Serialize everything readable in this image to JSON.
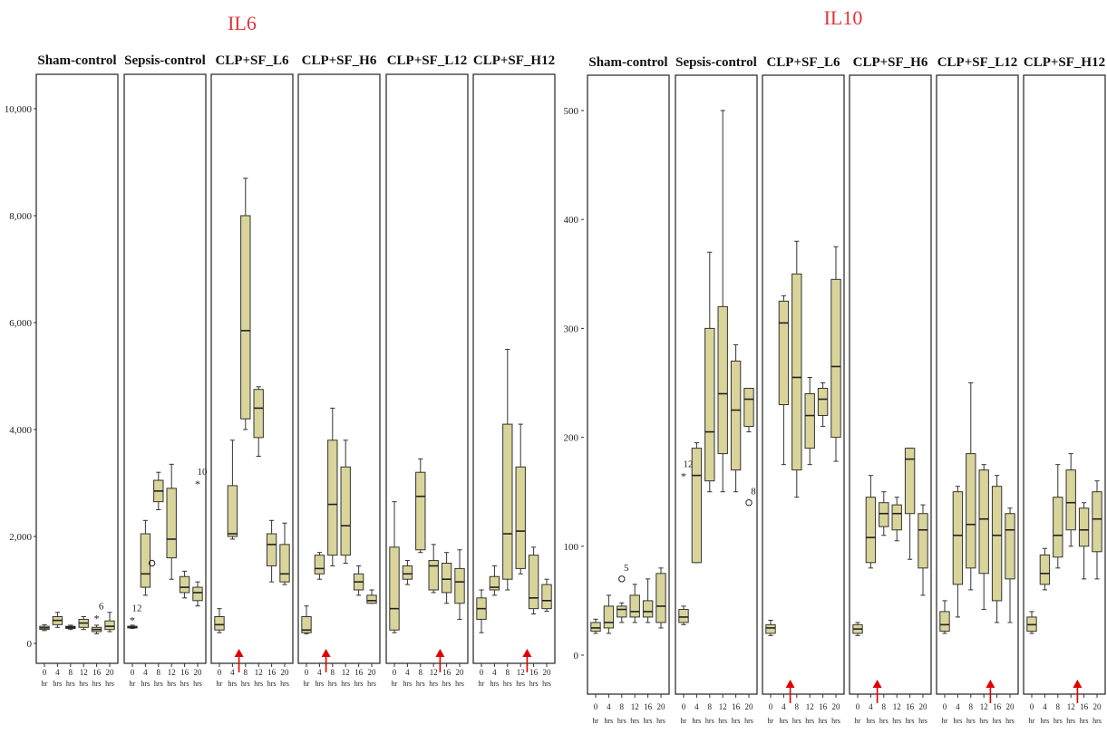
{
  "chart_data": [
    {
      "type": "boxplot",
      "title": "IL6",
      "title_color": "#e0353b",
      "box_fill": "#d9d49a",
      "box_stroke": "#333333",
      "arrow_color": "#e00000",
      "ylim": [
        -300,
        10500
      ],
      "yticks": [
        {
          "value": 0,
          "label": "0"
        },
        {
          "value": 2000,
          "label": "2,000"
        },
        {
          "value": 4000,
          "label": "4,000"
        },
        {
          "value": 6000,
          "label": "6,000"
        },
        {
          "value": 8000,
          "label": "8,000"
        },
        {
          "value": 10000,
          "label": "10,000"
        }
      ],
      "xticks": [
        {
          "num": "0",
          "unit": "hr"
        },
        {
          "num": "4",
          "unit": "hrs"
        },
        {
          "num": "8",
          "unit": "hrs"
        },
        {
          "num": "12",
          "unit": "hrs"
        },
        {
          "num": "16",
          "unit": "hrs"
        },
        {
          "num": "20",
          "unit": "hrs"
        }
      ],
      "panels": [
        {
          "name": "Sham-control",
          "boxes": [
            {
              "x": 0,
              "wlo": 240,
              "q1": 260,
              "med": 290,
              "q3": 320,
              "whi": 350
            },
            {
              "x": 4,
              "wlo": 300,
              "q1": 350,
              "med": 430,
              "q3": 500,
              "whi": 580
            },
            {
              "x": 8,
              "wlo": 260,
              "q1": 280,
              "med": 300,
              "q3": 320,
              "whi": 340
            },
            {
              "x": 12,
              "wlo": 260,
              "q1": 300,
              "med": 380,
              "q3": 450,
              "whi": 500
            },
            {
              "x": 16,
              "wlo": 180,
              "q1": 220,
              "med": 260,
              "q3": 300,
              "whi": 340
            },
            {
              "x": 20,
              "wlo": 220,
              "q1": 260,
              "med": 320,
              "q3": 420,
              "whi": 580
            }
          ],
          "outliers": [
            {
              "x": 16,
              "y": 480,
              "marker": "star",
              "label": "6"
            }
          ]
        },
        {
          "name": "Sepsis-control",
          "boxes": [
            {
              "x": 0,
              "wlo": 280,
              "q1": 290,
              "med": 300,
              "q3": 320,
              "whi": 340
            },
            {
              "x": 4,
              "wlo": 900,
              "q1": 1050,
              "med": 1300,
              "q3": 2050,
              "whi": 2300
            },
            {
              "x": 8,
              "wlo": 2500,
              "q1": 2650,
              "med": 2850,
              "q3": 3050,
              "whi": 3200
            },
            {
              "x": 12,
              "wlo": 1200,
              "q1": 1600,
              "med": 1950,
              "q3": 2900,
              "whi": 3350
            },
            {
              "x": 16,
              "wlo": 850,
              "q1": 950,
              "med": 1050,
              "q3": 1250,
              "whi": 1350
            },
            {
              "x": 20,
              "wlo": 700,
              "q1": 800,
              "med": 950,
              "q3": 1050,
              "whi": 1150
            }
          ],
          "outliers": [
            {
              "x": 0,
              "y": 450,
              "marker": "star",
              "label": "12"
            },
            {
              "x": 6,
              "y": 1500,
              "marker": "circle",
              "label": ""
            },
            {
              "x": 20,
              "y": 3000,
              "marker": "star",
              "label": "10"
            }
          ]
        },
        {
          "name": "CLP+SF_L6",
          "arrow_x": 6,
          "boxes": [
            {
              "x": 0,
              "wlo": 200,
              "q1": 250,
              "med": 350,
              "q3": 500,
              "whi": 650
            },
            {
              "x": 4,
              "wlo": 1950,
              "q1": 2000,
              "med": 2050,
              "q3": 2950,
              "whi": 3800
            },
            {
              "x": 8,
              "wlo": 4000,
              "q1": 4200,
              "med": 5850,
              "q3": 8000,
              "whi": 8700
            },
            {
              "x": 12,
              "wlo": 3500,
              "q1": 3850,
              "med": 4400,
              "q3": 4750,
              "whi": 4800
            },
            {
              "x": 16,
              "wlo": 1150,
              "q1": 1450,
              "med": 1850,
              "q3": 2050,
              "whi": 2300
            },
            {
              "x": 20,
              "wlo": 1100,
              "q1": 1150,
              "med": 1300,
              "q3": 1850,
              "whi": 2250
            }
          ],
          "outliers": []
        },
        {
          "name": "CLP+SF_H6",
          "arrow_x": 6,
          "boxes": [
            {
              "x": 0,
              "wlo": 180,
              "q1": 200,
              "med": 250,
              "q3": 500,
              "whi": 700
            },
            {
              "x": 4,
              "wlo": 1200,
              "q1": 1300,
              "med": 1400,
              "q3": 1650,
              "whi": 1700
            },
            {
              "x": 8,
              "wlo": 1450,
              "q1": 1650,
              "med": 2600,
              "q3": 3800,
              "whi": 4400
            },
            {
              "x": 12,
              "wlo": 1500,
              "q1": 1650,
              "med": 2200,
              "q3": 3300,
              "whi": 3800
            },
            {
              "x": 16,
              "wlo": 900,
              "q1": 1000,
              "med": 1150,
              "q3": 1300,
              "whi": 1450
            },
            {
              "x": 20,
              "wlo": 750,
              "q1": 750,
              "med": 800,
              "q3": 900,
              "whi": 1000
            }
          ],
          "outliers": []
        },
        {
          "name": "CLP+SF_L12",
          "arrow_x": 14,
          "boxes": [
            {
              "x": 0,
              "wlo": 200,
              "q1": 250,
              "med": 650,
              "q3": 1800,
              "whi": 2650
            },
            {
              "x": 4,
              "wlo": 1100,
              "q1": 1200,
              "med": 1300,
              "q3": 1450,
              "whi": 1550
            },
            {
              "x": 8,
              "wlo": 1700,
              "q1": 1750,
              "med": 2750,
              "q3": 3200,
              "whi": 3450
            },
            {
              "x": 12,
              "wlo": 950,
              "q1": 1000,
              "med": 1450,
              "q3": 1550,
              "whi": 1850
            },
            {
              "x": 16,
              "wlo": 750,
              "q1": 950,
              "med": 1200,
              "q3": 1500,
              "whi": 1700
            },
            {
              "x": 20,
              "wlo": 450,
              "q1": 750,
              "med": 1150,
              "q3": 1400,
              "whi": 1750
            }
          ],
          "outliers": []
        },
        {
          "name": "CLP+SF_H12",
          "arrow_x": 14,
          "boxes": [
            {
              "x": 0,
              "wlo": 200,
              "q1": 450,
              "med": 650,
              "q3": 850,
              "whi": 1000
            },
            {
              "x": 4,
              "wlo": 900,
              "q1": 1000,
              "med": 1050,
              "q3": 1250,
              "whi": 1450
            },
            {
              "x": 8,
              "wlo": 1000,
              "q1": 1200,
              "med": 2050,
              "q3": 4100,
              "whi": 5500
            },
            {
              "x": 12,
              "wlo": 1300,
              "q1": 1400,
              "med": 2100,
              "q3": 3300,
              "whi": 4100
            },
            {
              "x": 16,
              "wlo": 550,
              "q1": 650,
              "med": 850,
              "q3": 1650,
              "whi": 1800
            },
            {
              "x": 20,
              "wlo": 600,
              "q1": 650,
              "med": 800,
              "q3": 1100,
              "whi": 1200
            }
          ],
          "outliers": []
        }
      ]
    },
    {
      "type": "boxplot",
      "title": "IL10",
      "title_color": "#e0353b",
      "box_fill": "#d9d49a",
      "box_stroke": "#333333",
      "arrow_color": "#e00000",
      "ylim": [
        -20,
        530
      ],
      "yticks": [
        {
          "value": 0,
          "label": "0"
        },
        {
          "value": 100,
          "label": "100"
        },
        {
          "value": 200,
          "label": "200"
        },
        {
          "value": 300,
          "label": "300"
        },
        {
          "value": 400,
          "label": "400"
        },
        {
          "value": 500,
          "label": "500"
        }
      ],
      "xticks": [
        {
          "num": "0",
          "unit": "hr"
        },
        {
          "num": "4",
          "unit": "hrs"
        },
        {
          "num": "8",
          "unit": "hrs"
        },
        {
          "num": "12",
          "unit": "hrs"
        },
        {
          "num": "16",
          "unit": "hrs"
        },
        {
          "num": "20",
          "unit": "hrs"
        }
      ],
      "panels": [
        {
          "name": "Sham-control",
          "boxes": [
            {
              "x": 0,
              "wlo": 20,
              "q1": 22,
              "med": 25,
              "q3": 30,
              "whi": 33
            },
            {
              "x": 4,
              "wlo": 20,
              "q1": 25,
              "med": 30,
              "q3": 45,
              "whi": 55
            },
            {
              "x": 8,
              "wlo": 30,
              "q1": 35,
              "med": 42,
              "q3": 45,
              "whi": 48
            },
            {
              "x": 12,
              "wlo": 30,
              "q1": 35,
              "med": 40,
              "q3": 55,
              "whi": 65
            },
            {
              "x": 16,
              "wlo": 30,
              "q1": 35,
              "med": 40,
              "q3": 50,
              "whi": 70
            },
            {
              "x": 20,
              "wlo": 25,
              "q1": 30,
              "med": 45,
              "q3": 75,
              "whi": 80
            }
          ],
          "outliers": [
            {
              "x": 8,
              "y": 70,
              "marker": "circle",
              "label": "5"
            }
          ]
        },
        {
          "name": "Sepsis-control",
          "boxes": [
            {
              "x": 0,
              "wlo": 28,
              "q1": 30,
              "med": 35,
              "q3": 42,
              "whi": 45
            },
            {
              "x": 4,
              "wlo": 85,
              "q1": 85,
              "med": 165,
              "q3": 190,
              "whi": 195
            },
            {
              "x": 8,
              "wlo": 150,
              "q1": 160,
              "med": 205,
              "q3": 300,
              "whi": 370
            },
            {
              "x": 12,
              "wlo": 150,
              "q1": 185,
              "med": 240,
              "q3": 320,
              "whi": 500
            },
            {
              "x": 16,
              "wlo": 150,
              "q1": 170,
              "med": 225,
              "q3": 270,
              "whi": 285
            },
            {
              "x": 20,
              "wlo": 205,
              "q1": 210,
              "med": 235,
              "q3": 245,
              "whi": 245
            }
          ],
          "outliers": [
            {
              "x": 0,
              "y": 165,
              "marker": "star",
              "label": "12"
            },
            {
              "x": 20,
              "y": 140,
              "marker": "circle",
              "label": "8"
            }
          ]
        },
        {
          "name": "CLP+SF_L6",
          "arrow_x": 6,
          "boxes": [
            {
              "x": 0,
              "wlo": 18,
              "q1": 20,
              "med": 25,
              "q3": 28,
              "whi": 32
            },
            {
              "x": 4,
              "wlo": 175,
              "q1": 230,
              "med": 305,
              "q3": 325,
              "whi": 330
            },
            {
              "x": 8,
              "wlo": 145,
              "q1": 170,
              "med": 255,
              "q3": 350,
              "whi": 380
            },
            {
              "x": 12,
              "wlo": 175,
              "q1": 190,
              "med": 220,
              "q3": 240,
              "whi": 255
            },
            {
              "x": 16,
              "wlo": 210,
              "q1": 220,
              "med": 235,
              "q3": 245,
              "whi": 250
            },
            {
              "x": 20,
              "wlo": 178,
              "q1": 200,
              "med": 265,
              "q3": 345,
              "whi": 375
            }
          ],
          "outliers": []
        },
        {
          "name": "CLP+SF_H6",
          "arrow_x": 6,
          "boxes": [
            {
              "x": 0,
              "wlo": 18,
              "q1": 20,
              "med": 24,
              "q3": 28,
              "whi": 30
            },
            {
              "x": 4,
              "wlo": 80,
              "q1": 85,
              "med": 108,
              "q3": 145,
              "whi": 165
            },
            {
              "x": 8,
              "wlo": 110,
              "q1": 118,
              "med": 130,
              "q3": 140,
              "whi": 150
            },
            {
              "x": 12,
              "wlo": 105,
              "q1": 115,
              "med": 130,
              "q3": 138,
              "whi": 145
            },
            {
              "x": 16,
              "wlo": 88,
              "q1": 130,
              "med": 180,
              "q3": 190,
              "whi": 190
            },
            {
              "x": 20,
              "wlo": 55,
              "q1": 80,
              "med": 115,
              "q3": 130,
              "whi": 138
            }
          ],
          "outliers": []
        },
        {
          "name": "CLP+SF_L12",
          "arrow_x": 14,
          "boxes": [
            {
              "x": 0,
              "wlo": 20,
              "q1": 22,
              "med": 28,
              "q3": 40,
              "whi": 50
            },
            {
              "x": 4,
              "wlo": 35,
              "q1": 65,
              "med": 110,
              "q3": 150,
              "whi": 155
            },
            {
              "x": 8,
              "wlo": 60,
              "q1": 80,
              "med": 120,
              "q3": 185,
              "whi": 250
            },
            {
              "x": 12,
              "wlo": 42,
              "q1": 75,
              "med": 125,
              "q3": 170,
              "whi": 175
            },
            {
              "x": 16,
              "wlo": 30,
              "q1": 50,
              "med": 110,
              "q3": 155,
              "whi": 165
            },
            {
              "x": 20,
              "wlo": 30,
              "q1": 70,
              "med": 115,
              "q3": 130,
              "whi": 135
            }
          ],
          "outliers": []
        },
        {
          "name": "CLP+SF_H12",
          "arrow_x": 14,
          "boxes": [
            {
              "x": 0,
              "wlo": 20,
              "q1": 22,
              "med": 28,
              "q3": 35,
              "whi": 40
            },
            {
              "x": 4,
              "wlo": 60,
              "q1": 65,
              "med": 75,
              "q3": 92,
              "whi": 98
            },
            {
              "x": 8,
              "wlo": 80,
              "q1": 90,
              "med": 110,
              "q3": 145,
              "whi": 175
            },
            {
              "x": 12,
              "wlo": 100,
              "q1": 115,
              "med": 140,
              "q3": 170,
              "whi": 185
            },
            {
              "x": 16,
              "wlo": 70,
              "q1": 100,
              "med": 115,
              "q3": 135,
              "whi": 140
            },
            {
              "x": 20,
              "wlo": 70,
              "q1": 95,
              "med": 125,
              "q3": 150,
              "whi": 160
            }
          ],
          "outliers": []
        }
      ]
    }
  ]
}
